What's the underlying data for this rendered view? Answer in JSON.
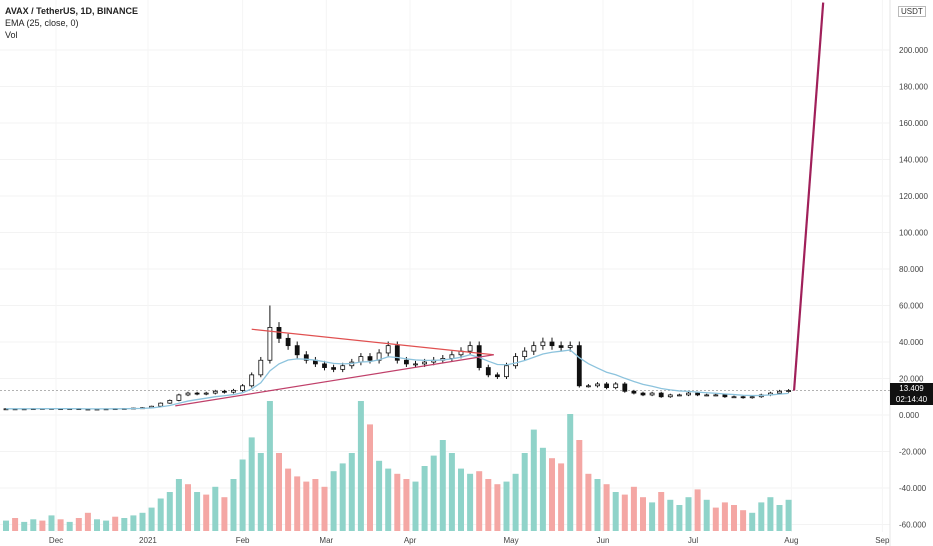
{
  "header": {
    "symbol_line": "AVAX / TetherUS, 1D, BINANCE",
    "indicator_ema": "EMA (25, close, 0)",
    "indicator_vol": "Vol"
  },
  "price_axis": {
    "currency": "USDT",
    "last_price": "13.409",
    "countdown": "02:14:40"
  },
  "colors": {
    "up_volume": "#8fd3c9",
    "down_volume": "#f4a7a4",
    "ema": "#8cc3dd",
    "trend_upper": "#e05050",
    "trend_lower": "#c0406a",
    "projection": "#a0205a",
    "candle": "#111111"
  },
  "chart_data": {
    "type": "candlestick",
    "title": "AVAX / TetherUS, 1D, BINANCE",
    "sampling_note": "3-day samples",
    "x_tick_labels": [
      "Dec",
      "2021",
      "Feb",
      "Mar",
      "Apr",
      "May",
      "Jun",
      "Jul",
      "Aug",
      "Sep"
    ],
    "x_tick_index": [
      5.5,
      15.6,
      26,
      35.2,
      44.4,
      55.5,
      65.6,
      75.5,
      86.3,
      96.3
    ],
    "y_tick_labels": [
      "200.000",
      "180.000",
      "160.000",
      "140.000",
      "120.000",
      "100.000",
      "80.000",
      "60.000",
      "40.000",
      "20.000",
      "0.000",
      "-20.000",
      "-40.000",
      "-60.000"
    ],
    "y_ticks": [
      200,
      180,
      160,
      140,
      120,
      100,
      80,
      60,
      40,
      20,
      0,
      -20,
      -40,
      -60
    ],
    "ylim": [
      -62,
      226
    ],
    "closes": [
      3.4,
      3.3,
      3.4,
      3.5,
      3.6,
      3.5,
      3.4,
      3.5,
      3.3,
      3.2,
      3.3,
      3.4,
      3.5,
      3.6,
      3.8,
      4.0,
      4.8,
      6.5,
      8,
      11,
      12,
      11.5,
      12,
      13,
      12.5,
      13.5,
      16,
      22,
      30,
      48,
      42,
      38,
      33,
      30,
      28,
      26,
      25,
      27,
      29,
      32,
      30,
      34,
      38,
      30,
      28,
      28,
      29,
      30,
      31,
      33,
      35,
      38,
      26,
      22,
      21,
      27,
      32,
      35,
      38,
      40,
      38,
      37,
      38,
      16,
      16,
      17,
      15,
      17,
      13,
      12,
      11,
      12,
      10,
      11,
      11,
      12,
      11,
      11,
      11,
      10,
      10,
      9.5,
      10,
      11,
      12,
      13,
      13.4
    ],
    "volumes": [
      8,
      10,
      7,
      9,
      8,
      12,
      9,
      7,
      10,
      14,
      9,
      8,
      11,
      10,
      12,
      14,
      18,
      25,
      30,
      40,
      36,
      30,
      28,
      34,
      26,
      40,
      55,
      72,
      60,
      100,
      60,
      48,
      42,
      38,
      40,
      34,
      46,
      52,
      60,
      100,
      82,
      54,
      48,
      44,
      40,
      38,
      50,
      58,
      70,
      60,
      48,
      44,
      46,
      40,
      36,
      38,
      44,
      60,
      78,
      64,
      56,
      52,
      90,
      70,
      44,
      40,
      36,
      30,
      28,
      34,
      26,
      22,
      30,
      24,
      20,
      26,
      32,
      24,
      18,
      22,
      20,
      16,
      14,
      22,
      26,
      20,
      24
    ],
    "volume_up": [
      1,
      0,
      1,
      1,
      0,
      1,
      0,
      1,
      0,
      0,
      1,
      1,
      0,
      1,
      1,
      1,
      1,
      1,
      1,
      1,
      0,
      1,
      0,
      1,
      0,
      1,
      1,
      1,
      1,
      1,
      0,
      0,
      0,
      0,
      0,
      0,
      1,
      1,
      1,
      1,
      0,
      1,
      1,
      0,
      0,
      1,
      1,
      1,
      1,
      1,
      1,
      1,
      0,
      0,
      0,
      1,
      1,
      1,
      1,
      1,
      0,
      0,
      1,
      0,
      0,
      1,
      0,
      1,
      0,
      0,
      0,
      1,
      0,
      1,
      1,
      1,
      0,
      1,
      0,
      0,
      0,
      0,
      1,
      1,
      1,
      1,
      1
    ],
    "current_price": 13.409,
    "annotations": [
      {
        "type": "trendline",
        "name": "triangle-upper",
        "from": {
          "index": 27,
          "price": 47
        },
        "to": {
          "index": 53.6,
          "price": 33
        }
      },
      {
        "type": "trendline",
        "name": "triangle-lower",
        "from": {
          "index": 18.6,
          "price": 5
        },
        "to": {
          "index": 53.6,
          "price": 33
        }
      },
      {
        "type": "trendline",
        "name": "projection",
        "from": {
          "index": 86.6,
          "price": 13.4
        },
        "to": {
          "index": 89.8,
          "price": 226
        }
      }
    ]
  }
}
